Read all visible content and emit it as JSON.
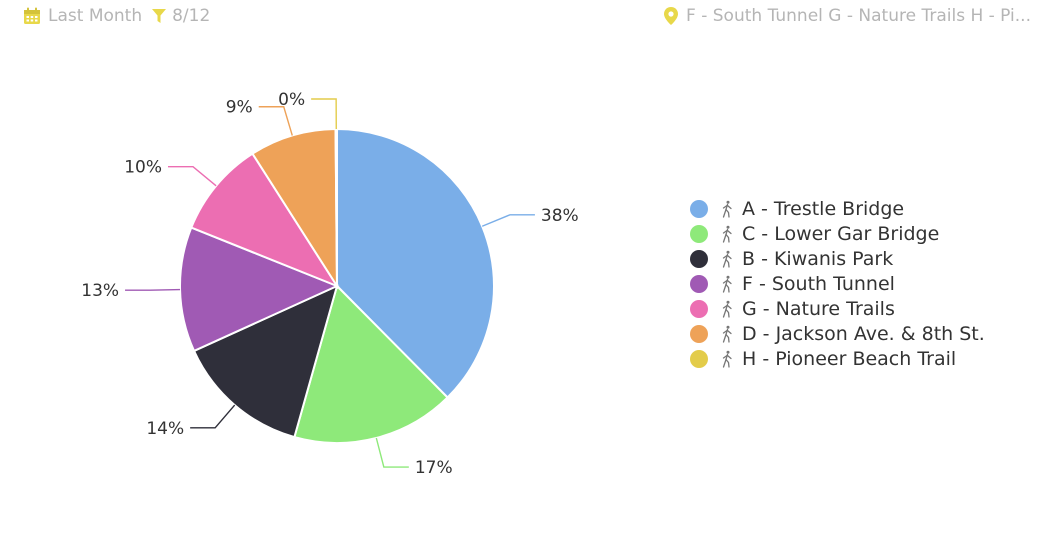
{
  "filters": {
    "date_range": "Last Month",
    "filter_count": "8/12",
    "locations": "F - South Tunnel G - Nature Trails H - Pi..."
  },
  "colors": {
    "icon_accent": "#e8d84a",
    "text_muted": "#b5b5b5"
  },
  "chart_data": {
    "type": "pie",
    "slices": [
      {
        "name": "A - Trestle Bridge",
        "label": "38%",
        "value": 38,
        "color": "#7aaee8"
      },
      {
        "name": "C - Lower Gar Bridge",
        "label": "17%",
        "value": 17,
        "color": "#8ee97a"
      },
      {
        "name": "B - Kiwanis Park",
        "label": "14%",
        "value": 14,
        "color": "#2f2f3a"
      },
      {
        "name": "F - South Tunnel",
        "label": "13%",
        "value": 13,
        "color": "#a05ab4"
      },
      {
        "name": "G - Nature Trails",
        "label": "10%",
        "value": 10,
        "color": "#ec6eb2"
      },
      {
        "name": "D - Jackson Ave. & 8th St.",
        "label": "9%",
        "value": 9,
        "color": "#eea258"
      },
      {
        "name": "H - Pioneer Beach Trail",
        "label": "0%",
        "value": 0.15,
        "color": "#e3cc4a"
      }
    ],
    "legend_position": "right"
  }
}
